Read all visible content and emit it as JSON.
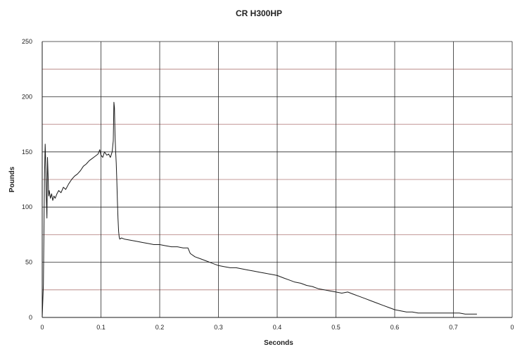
{
  "chart_data": {
    "type": "line",
    "title": "CR H300HP",
    "xlabel": "Seconds",
    "ylabel": "Pounds",
    "xlim": [
      0,
      0.8
    ],
    "ylim": [
      0,
      250
    ],
    "x_ticks": [
      "0",
      "0.1",
      "0.2",
      "0.3",
      "0.4",
      "0.5",
      "0.6",
      "0.7",
      "0"
    ],
    "y_ticks": [
      "0",
      "50",
      "100",
      "150",
      "200",
      "250"
    ],
    "grid": true,
    "legend": "none",
    "colors": {
      "line": "#1a1a1a",
      "grid_major": "#2a2a2a",
      "grid_minor": "#b07a78",
      "axis": "#1a1a1a"
    },
    "series": [
      {
        "x": [
          0.0,
          0.002,
          0.004,
          0.005,
          0.006,
          0.007,
          0.008,
          0.009,
          0.01,
          0.011,
          0.012,
          0.014,
          0.016,
          0.018,
          0.02,
          0.022,
          0.025,
          0.028,
          0.032,
          0.036,
          0.04,
          0.045,
          0.05,
          0.055,
          0.06,
          0.065,
          0.07,
          0.075,
          0.08,
          0.085,
          0.09,
          0.095,
          0.098,
          0.1,
          0.103,
          0.106,
          0.11,
          0.113,
          0.116,
          0.119,
          0.121,
          0.122,
          0.123,
          0.124,
          0.125,
          0.126,
          0.127,
          0.128,
          0.129,
          0.13,
          0.131,
          0.132,
          0.135,
          0.14,
          0.15,
          0.16,
          0.17,
          0.18,
          0.19,
          0.2,
          0.21,
          0.22,
          0.23,
          0.24,
          0.248,
          0.252,
          0.26,
          0.27,
          0.28,
          0.29,
          0.3,
          0.31,
          0.32,
          0.33,
          0.34,
          0.35,
          0.36,
          0.37,
          0.38,
          0.39,
          0.4,
          0.41,
          0.42,
          0.43,
          0.44,
          0.45,
          0.46,
          0.47,
          0.48,
          0.49,
          0.5,
          0.51,
          0.52,
          0.53,
          0.54,
          0.55,
          0.56,
          0.57,
          0.58,
          0.59,
          0.6,
          0.61,
          0.62,
          0.63,
          0.64,
          0.65,
          0.66,
          0.67,
          0.68,
          0.69,
          0.7,
          0.71,
          0.72,
          0.73,
          0.74
        ],
        "y": [
          0,
          30,
          130,
          157,
          140,
          110,
          90,
          145,
          130,
          110,
          115,
          108,
          112,
          106,
          110,
          108,
          112,
          115,
          113,
          118,
          116,
          121,
          125,
          128,
          130,
          133,
          137,
          139,
          142,
          144,
          146,
          148,
          152,
          147,
          145,
          150,
          147,
          148,
          145,
          150,
          160,
          195,
          190,
          165,
          150,
          140,
          125,
          105,
          90,
          78,
          73,
          71,
          72,
          71,
          70,
          69,
          68,
          67,
          66,
          66,
          65,
          64,
          64,
          63,
          63,
          58,
          55,
          53,
          51,
          49,
          47,
          46,
          45,
          45,
          44,
          43,
          42,
          41,
          40,
          39,
          38,
          36,
          34,
          32,
          31,
          29,
          28,
          26,
          25,
          24,
          23,
          22,
          23,
          21,
          19,
          17,
          15,
          13,
          11,
          9,
          7,
          6,
          5,
          5,
          4,
          4,
          4,
          4,
          4,
          4,
          4,
          4,
          3,
          3,
          3
        ]
      }
    ]
  }
}
